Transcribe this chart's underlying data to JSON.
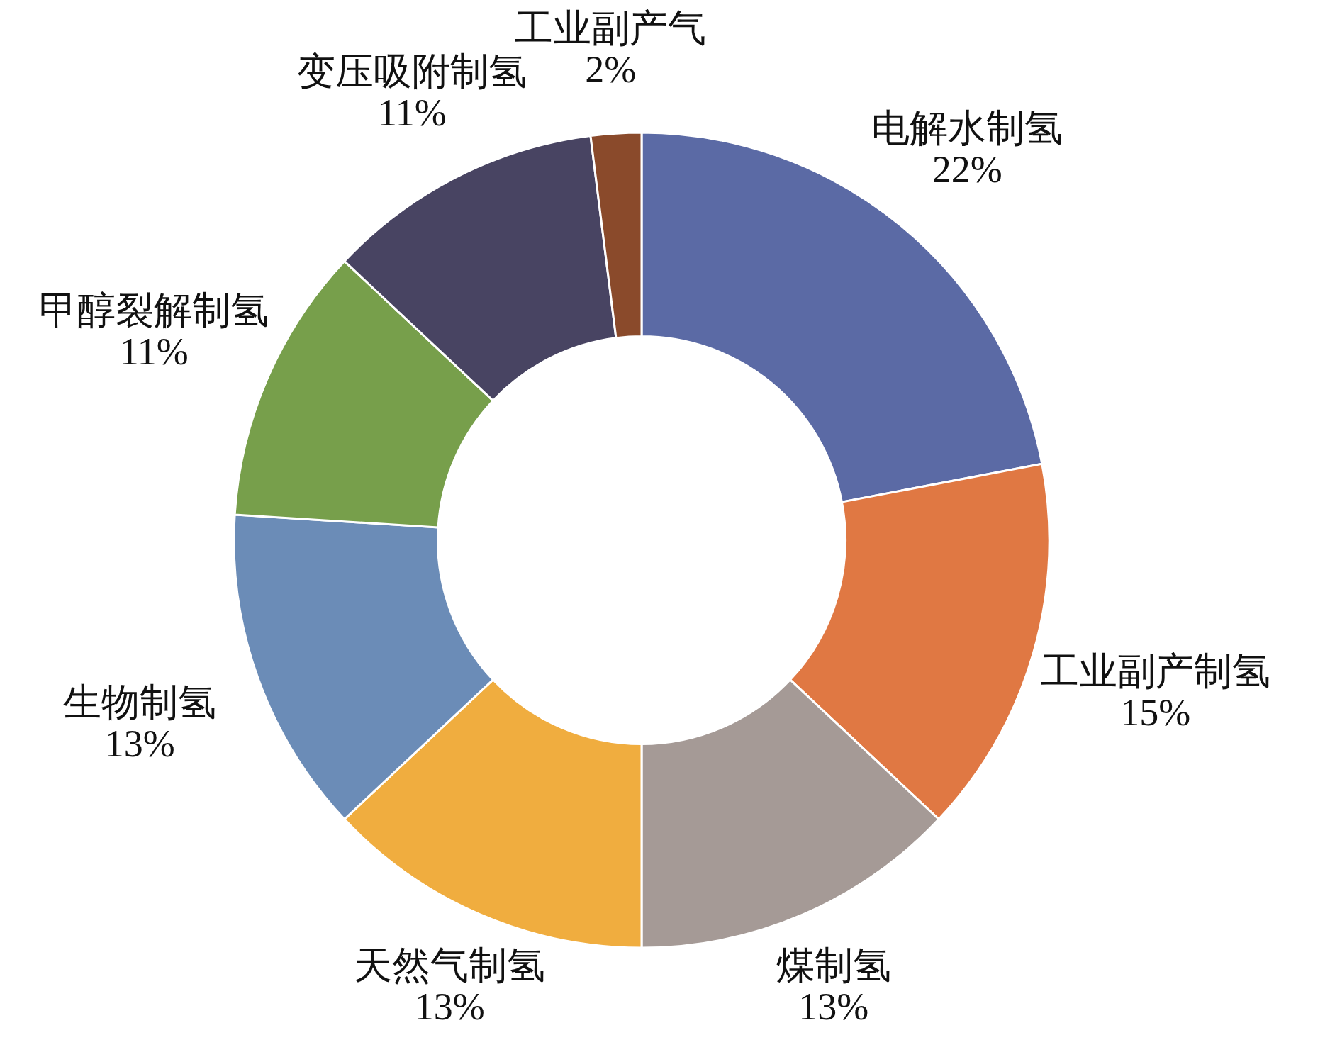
{
  "chart_data": {
    "type": "donut",
    "categories": [
      "电解水制氢",
      "工业副产制氢",
      "煤制氢",
      "天然气制氢",
      "生物制氢",
      "甲醇裂解制氢",
      "变压吸附制氢",
      "工业副产气"
    ],
    "values": [
      22,
      15,
      13,
      13,
      13,
      11,
      11,
      2
    ],
    "colors": [
      "#5b6aa5",
      "#e07843",
      "#a59a96",
      "#f0ad3f",
      "#6b8cb7",
      "#779f4b",
      "#484462",
      "#8a4a2b"
    ],
    "value_labels": [
      "22%",
      "15%",
      "13%",
      "13%",
      "13%",
      "11%",
      "11%",
      "2%"
    ]
  }
}
